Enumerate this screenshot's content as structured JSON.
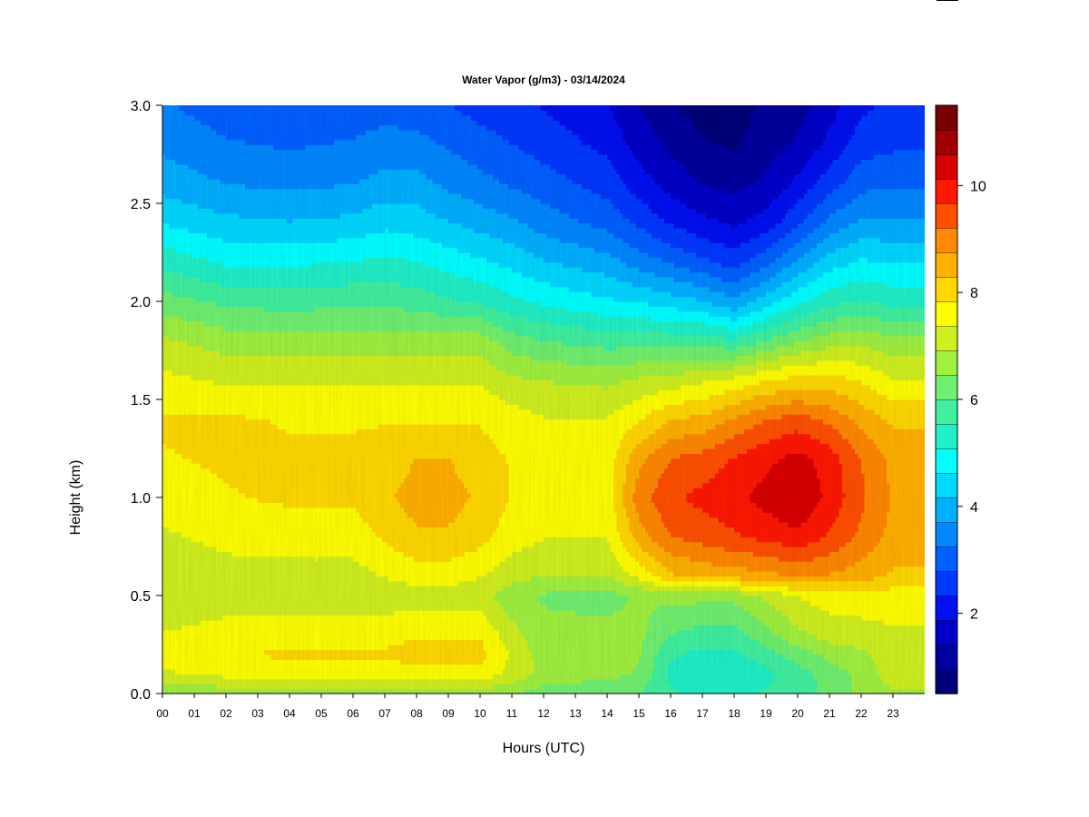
{
  "chart_data": {
    "type": "heatmap",
    "title": "Water Vapor (g/m3) - 03/14/2024",
    "xlabel": "Hours (UTC)",
    "ylabel": "Height (km)",
    "x_ticks": [
      "00",
      "01",
      "02",
      "03",
      "04",
      "05",
      "06",
      "07",
      "08",
      "09",
      "10",
      "11",
      "12",
      "13",
      "14",
      "15",
      "16",
      "17",
      "18",
      "19",
      "20",
      "21",
      "22",
      "23"
    ],
    "xlim": [
      0,
      24
    ],
    "y_ticks": [
      "0.0",
      "0.5",
      "1.0",
      "1.5",
      "2.0",
      "2.5",
      "3.0"
    ],
    "ylim": [
      0,
      3.0
    ],
    "colorbar": {
      "ticks": [
        "2",
        "4",
        "6",
        "8",
        "10"
      ],
      "range": [
        0.5,
        11.5
      ],
      "levels": 22,
      "colors": [
        "#00007a",
        "#00009e",
        "#0000c8",
        "#0010f0",
        "#0038ff",
        "#0060ff",
        "#0088ff",
        "#00b0ff",
        "#00d8ff",
        "#00ffff",
        "#20f0c8",
        "#40f0a0",
        "#70f070",
        "#a0f040",
        "#d0f020",
        "#ffff00",
        "#ffd800",
        "#ffb000",
        "#ff8800",
        "#ff5000",
        "#ff1800",
        "#d80000",
        "#a00000",
        "#780000"
      ]
    },
    "hours": [
      0,
      2,
      4,
      6,
      7,
      8,
      9,
      10,
      11,
      12,
      14,
      15,
      16,
      17,
      18,
      19,
      20,
      21,
      22,
      23,
      24
    ],
    "heights_km": [
      0.0,
      0.1,
      0.2,
      0.3,
      0.5,
      0.6,
      0.8,
      1.0,
      1.2,
      1.4,
      1.6,
      1.8,
      2.0,
      2.2,
      2.4,
      2.6,
      2.8,
      3.0
    ],
    "values": [
      [
        6.5,
        7.3,
        7.6,
        7.4,
        7.0,
        7.0,
        7.3,
        7.6,
        7.8,
        7.9,
        7.5,
        7.0,
        6.2,
        5.4,
        4.6,
        4.0,
        3.6,
        3.3
      ],
      [
        6.6,
        7.5,
        7.8,
        7.6,
        7.1,
        7.2,
        7.5,
        7.8,
        7.9,
        7.9,
        7.3,
        6.7,
        5.9,
        5.0,
        4.3,
        3.7,
        3.3,
        3.0
      ],
      [
        6.6,
        7.6,
        7.9,
        7.7,
        7.1,
        7.2,
        7.6,
        7.9,
        7.9,
        7.8,
        7.3,
        6.7,
        5.8,
        5.0,
        4.2,
        3.6,
        3.2,
        2.8
      ],
      [
        6.6,
        7.6,
        7.9,
        7.7,
        7.1,
        7.2,
        7.6,
        7.9,
        7.9,
        7.8,
        7.3,
        6.7,
        5.9,
        5.1,
        4.3,
        3.7,
        3.3,
        3.0
      ],
      [
        6.6,
        7.6,
        7.9,
        7.7,
        7.1,
        7.4,
        7.9,
        8.2,
        8.0,
        7.8,
        7.3,
        6.7,
        5.9,
        5.2,
        4.5,
        3.9,
        3.4,
        3.1
      ],
      [
        6.6,
        7.7,
        8.0,
        7.8,
        7.1,
        7.6,
        8.2,
        8.5,
        8.3,
        7.8,
        7.3,
        6.7,
        5.8,
        5.1,
        4.4,
        3.9,
        3.4,
        3.0
      ],
      [
        6.6,
        7.7,
        8.0,
        7.8,
        7.1,
        7.6,
        8.2,
        8.5,
        8.3,
        7.8,
        7.3,
        6.7,
        5.6,
        4.9,
        4.2,
        3.6,
        3.2,
        2.8
      ],
      [
        6.6,
        7.7,
        8.0,
        7.8,
        7.1,
        7.4,
        8.0,
        8.2,
        8.0,
        7.8,
        7.3,
        6.7,
        5.5,
        4.7,
        4.0,
        3.4,
        3.0,
        2.6
      ],
      [
        6.5,
        7.2,
        7.3,
        7.1,
        6.6,
        7.1,
        7.6,
        7.8,
        7.8,
        7.6,
        7.0,
        6.2,
        5.2,
        4.5,
        3.8,
        3.2,
        2.8,
        2.5
      ],
      [
        6.2,
        6.8,
        6.7,
        6.6,
        6.4,
        6.9,
        7.4,
        7.6,
        7.6,
        7.4,
        6.9,
        6.0,
        5.0,
        4.2,
        3.5,
        3.0,
        2.6,
        2.3
      ],
      [
        6.0,
        6.6,
        6.6,
        6.6,
        6.3,
        6.9,
        7.4,
        7.6,
        7.6,
        7.4,
        6.8,
        5.8,
        4.7,
        3.9,
        3.1,
        2.6,
        2.2,
        1.9
      ],
      [
        6.0,
        6.4,
        6.5,
        6.6,
        6.5,
        7.5,
        8.5,
        9.0,
        8.6,
        7.8,
        7.0,
        5.8,
        4.6,
        3.5,
        2.7,
        2.1,
        1.7,
        1.4
      ],
      [
        5.6,
        5.4,
        5.6,
        6.0,
        6.6,
        8.2,
        9.2,
        9.6,
        9.2,
        8.3,
        7.1,
        5.8,
        4.4,
        3.2,
        2.3,
        1.7,
        1.3,
        1.0
      ],
      [
        5.4,
        5.2,
        5.4,
        5.8,
        6.6,
        8.4,
        9.4,
        9.8,
        9.4,
        8.4,
        7.3,
        5.8,
        4.2,
        2.9,
        2.0,
        1.4,
        1.0,
        0.8
      ],
      [
        5.4,
        5.2,
        5.4,
        5.8,
        6.6,
        8.5,
        9.6,
        10.0,
        9.7,
        8.8,
        7.5,
        5.6,
        3.8,
        2.6,
        1.8,
        1.3,
        0.9,
        0.8
      ],
      [
        5.6,
        5.4,
        5.8,
        6.3,
        7.0,
        8.6,
        9.8,
        10.3,
        10.0,
        9.2,
        7.8,
        6.0,
        4.4,
        3.1,
        2.1,
        1.5,
        1.2,
        1.0
      ],
      [
        5.8,
        5.8,
        6.2,
        6.8,
        7.4,
        8.8,
        10.0,
        10.6,
        10.3,
        9.4,
        8.0,
        6.4,
        5.0,
        3.8,
        2.7,
        2.0,
        1.5,
        1.2
      ],
      [
        6.1,
        6.2,
        6.6,
        7.1,
        7.6,
        8.7,
        9.6,
        10.0,
        9.9,
        9.1,
        8.0,
        6.7,
        5.4,
        4.4,
        3.4,
        2.6,
        2.0,
        1.7
      ],
      [
        6.6,
        6.6,
        6.8,
        7.2,
        7.6,
        8.5,
        9.1,
        9.3,
        9.2,
        8.6,
        7.8,
        6.8,
        5.6,
        4.7,
        3.8,
        3.1,
        2.6,
        2.2
      ],
      [
        6.8,
        7.2,
        7.2,
        7.3,
        7.6,
        8.2,
        8.6,
        8.7,
        8.6,
        8.2,
        7.4,
        6.6,
        5.4,
        4.6,
        3.8,
        3.2,
        2.7,
        2.5
      ],
      [
        6.8,
        7.2,
        7.2,
        7.3,
        7.6,
        8.2,
        8.6,
        8.7,
        8.6,
        8.2,
        7.4,
        6.6,
        5.4,
        4.6,
        3.8,
        3.2,
        2.7,
        2.5
      ]
    ]
  }
}
